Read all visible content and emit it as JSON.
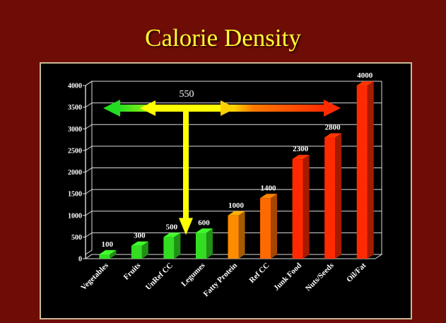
{
  "title": "Calorie Density",
  "chart_data": {
    "type": "bar",
    "categories": [
      "Vegetables",
      "Fruits",
      "UnRef CC",
      "Legumes",
      "Fatty Protein",
      "Ref CC",
      "Junk Food",
      "Nuts/Seeds",
      "Oil/Fat"
    ],
    "values": [
      100,
      300,
      500,
      600,
      1000,
      1400,
      2300,
      2800,
      4000
    ],
    "value_labels": [
      "100",
      "300",
      "500",
      "600",
      "1000",
      "1400",
      "2300",
      "2800",
      "4000"
    ],
    "bar_colors": [
      "#33dd22",
      "#33dd22",
      "#33dd22",
      "#33dd22",
      "#ff8c00",
      "#ff6a00",
      "#ff2a00",
      "#ff2a00",
      "#ff2a00"
    ],
    "ylim": [
      0,
      4000
    ],
    "yticks": [
      "0",
      "500",
      "1000",
      "1500",
      "2000",
      "2500",
      "3000",
      "3500",
      "4000"
    ],
    "grid": true,
    "annotation": {
      "label": "550",
      "value": 550
    }
  }
}
